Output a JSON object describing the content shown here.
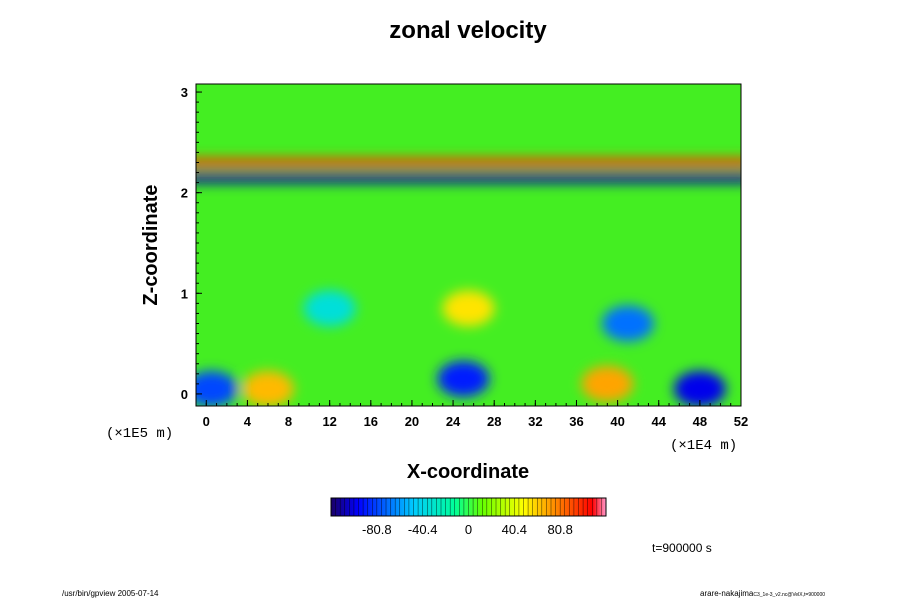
{
  "chart_data": {
    "type": "heatmap",
    "title": "zonal velocity",
    "xlabel": "X-coordinate",
    "ylabel": "Z-coordinate",
    "x_scale_note": "(×1E4 m)",
    "y_scale_note": "(×1E5 m)",
    "xlim": [
      -1,
      52
    ],
    "ylim": [
      -0.12,
      3.08
    ],
    "x_ticks": [
      "0",
      "4",
      "8",
      "12",
      "16",
      "20",
      "24",
      "28",
      "32",
      "36",
      "40",
      "44",
      "48",
      "52"
    ],
    "y_ticks": [
      "0",
      "1",
      "2",
      "3"
    ],
    "colorbar": {
      "min": -121.2,
      "max": 121.2,
      "ticks": [
        "-80.8",
        "-40.4",
        "0",
        "40.4",
        "80.8"
      ]
    },
    "time_label": "t=900000 s",
    "features": [
      {
        "x": 31,
        "z": 2.3,
        "value": 95,
        "shape": "band"
      },
      {
        "x": 31,
        "z": 2.14,
        "value": -110,
        "shape": "band"
      },
      {
        "x": 25.5,
        "z": 0.85,
        "value": 55
      },
      {
        "x": 12,
        "z": 0.85,
        "value": -35
      },
      {
        "x": 41,
        "z": 0.7,
        "value": -70
      },
      {
        "x": 48,
        "z": 0.05,
        "value": -100
      },
      {
        "x": 25,
        "z": 0.15,
        "value": -90
      },
      {
        "x": 6,
        "z": 0.05,
        "value": 65
      },
      {
        "x": 39,
        "z": 0.1,
        "value": 70
      },
      {
        "x": 0.5,
        "z": 0.05,
        "value": -80
      }
    ]
  },
  "footer": {
    "left": "/usr/bin/gpview 2005-07-14",
    "right_main": "arare-nakajima",
    "right_sub": "C3_1e-3_v2.nc@VelX,t=900000"
  }
}
